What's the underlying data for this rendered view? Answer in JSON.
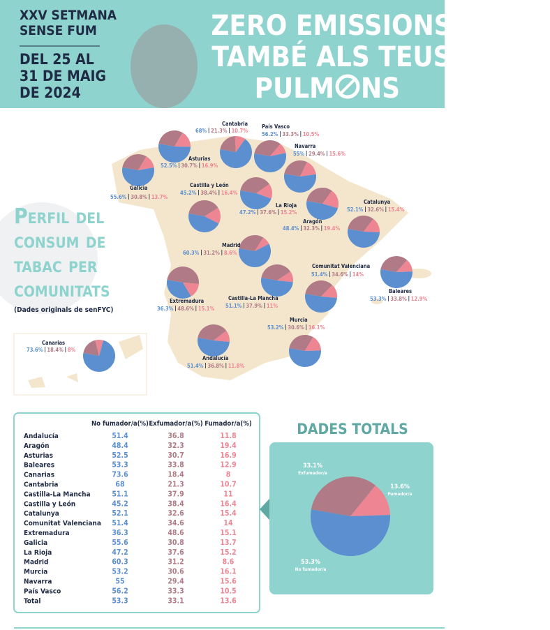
{
  "header": {
    "event": [
      "XXV SETMANA",
      "SENSE FUM"
    ],
    "dates": [
      "DEL 25 AL",
      "31 DE MAIG",
      "DE 2024"
    ],
    "slogan": [
      "ZERO EMISSIONS",
      "TAMBÉ ALS TEUS",
      "PULM",
      "NS"
    ]
  },
  "section": {
    "title": [
      "Perfil del",
      "consum de",
      "tabac per",
      "comunitats"
    ],
    "note": "(Dades originals de senFYC)"
  },
  "colors": [
    "#5b8fd0",
    "#b07a86",
    "#ee8592"
  ],
  "table": {
    "columns": [
      "No fumador/a(%)",
      "Exfumador/a(%)",
      "Fumador/a(%)"
    ]
  },
  "regions": [
    {
      "name": "Andalucía",
      "values": [
        51.4,
        36.8,
        11.8
      ],
      "value_labels": [
        "51.4%",
        "36.8%",
        "11.8%"
      ]
    },
    {
      "name": "Aragón",
      "values": [
        48.4,
        32.3,
        19.4
      ],
      "value_labels": [
        "48.4%",
        "32.3%",
        "19.4%"
      ]
    },
    {
      "name": "Asturias",
      "values": [
        52.5,
        30.7,
        16.9
      ],
      "value_labels": [
        "52.5%",
        "30.7%",
        "16.9%"
      ]
    },
    {
      "name": "Baleares",
      "values": [
        53.3,
        33.8,
        12.9
      ],
      "value_labels": [
        "53.3%",
        "33.8%",
        "12.9%"
      ]
    },
    {
      "name": "Canarias",
      "values": [
        73.6,
        18.4,
        8
      ],
      "value_labels": [
        "73.6%",
        "18.4%",
        "8%"
      ]
    },
    {
      "name": "Cantabria",
      "values": [
        68,
        21.3,
        10.7
      ],
      "value_labels": [
        "68%",
        "21.3%",
        "10.7%"
      ]
    },
    {
      "name": "Castilla-La Mancha",
      "values": [
        51.1,
        37.9,
        11
      ],
      "value_labels": [
        "51.1%",
        "37.9%",
        "11%"
      ]
    },
    {
      "name": "Castilla y León",
      "values": [
        45.2,
        38.4,
        16.4
      ],
      "value_labels": [
        "45.2%",
        "38.4%",
        "16.4%"
      ]
    },
    {
      "name": "Catalunya",
      "values": [
        52.1,
        32.6,
        15.4
      ],
      "value_labels": [
        "52.1%",
        "32.6%",
        "15.4%"
      ]
    },
    {
      "name": "Comunitat Valenciana",
      "values": [
        51.4,
        34.6,
        14
      ],
      "value_labels": [
        "51.4%",
        "34.6%",
        "14%"
      ]
    },
    {
      "name": "Extremadura",
      "values": [
        36.3,
        48.6,
        15.1
      ],
      "value_labels": [
        "36.3%",
        "48.6%",
        "15.1%"
      ]
    },
    {
      "name": "Galicia",
      "values": [
        55.6,
        30.8,
        13.7
      ],
      "value_labels": [
        "55.6%",
        "30.8%",
        "13.7%"
      ]
    },
    {
      "name": "La Rioja",
      "values": [
        47.2,
        37.6,
        15.2
      ],
      "value_labels": [
        "47.2%",
        "37.6%",
        "15.2%"
      ]
    },
    {
      "name": "Madrid",
      "values": [
        60.3,
        31.2,
        8.6
      ],
      "value_labels": [
        "60.3%",
        "31.2%",
        "8.6%"
      ]
    },
    {
      "name": "Murcia",
      "values": [
        53.2,
        30.6,
        16.1
      ],
      "value_labels": [
        "53.2%",
        "30.6%",
        "16.1%"
      ]
    },
    {
      "name": "Navarra",
      "values": [
        55,
        29.4,
        15.6
      ],
      "value_labels": [
        "55%",
        "29.4%",
        "15.6%"
      ]
    },
    {
      "name": "País Vasco",
      "values": [
        56.2,
        33.3,
        10.5
      ],
      "value_labels": [
        "56.2%",
        "33.3%",
        "10.5%"
      ]
    }
  ],
  "total": {
    "name": "Total",
    "title": "Dades totals",
    "values": [
      53.3,
      33.1,
      13.6
    ],
    "value_labels": [
      "53.3%",
      "33.1%",
      "13.6%"
    ],
    "labels": [
      "No fumador/a",
      "Exfumador/a",
      "Fumador/a"
    ]
  }
}
